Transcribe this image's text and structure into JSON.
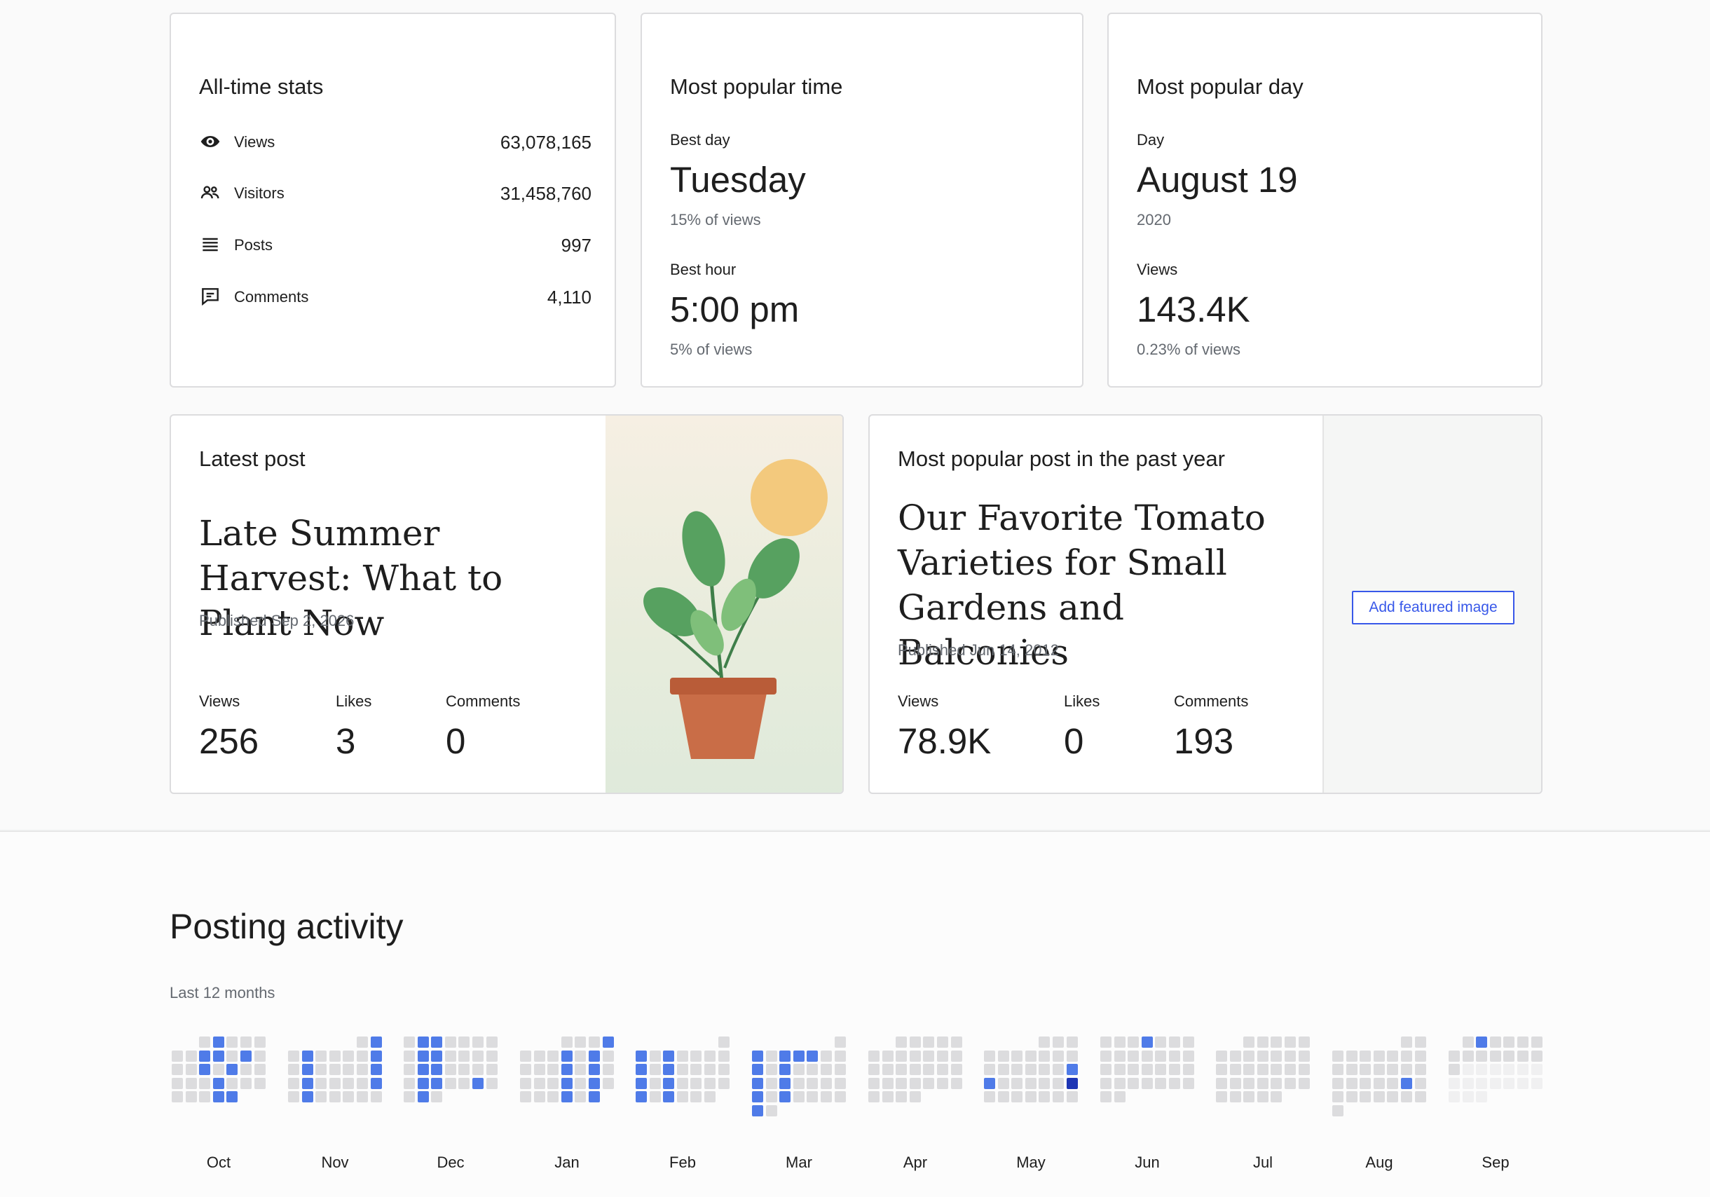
{
  "alltime": {
    "title": "All-time stats",
    "rows": [
      {
        "icon": "eye-icon",
        "label": "Views",
        "value": "63,078,165"
      },
      {
        "icon": "people-icon",
        "label": "Visitors",
        "value": "31,458,760"
      },
      {
        "icon": "posts-icon",
        "label": "Posts",
        "value": "997"
      },
      {
        "icon": "comment-icon",
        "label": "Comments",
        "value": "4,110"
      }
    ]
  },
  "popular_time": {
    "title": "Most popular time",
    "best_day_label": "Best day",
    "best_day": "Tuesday",
    "best_day_pct": "15% of views",
    "best_hour_label": "Best hour",
    "best_hour": "5:00 pm",
    "best_hour_pct": "5% of views"
  },
  "popular_day": {
    "title": "Most popular day",
    "day_label": "Day",
    "day": "August 19",
    "year": "2020",
    "views_label": "Views",
    "views": "143.4K",
    "views_pct": "0.23% of views"
  },
  "latest_post": {
    "title": "Latest post",
    "post_title": "Late Summer Harvest: What to Plant Now",
    "published": "Published Sep 2, 2026",
    "views_label": "Views",
    "views": "256",
    "likes_label": "Likes",
    "likes": "3",
    "comments_label": "Comments",
    "comments": "0"
  },
  "popular_post": {
    "title": "Most popular post in the past year",
    "post_title": "Our Favorite Tomato Varieties for Small Gardens and Balconies",
    "published": "Published Jun 14, 2012",
    "views_label": "Views",
    "views": "78.9K",
    "likes_label": "Likes",
    "likes": "0",
    "comments_label": "Comments",
    "comments": "193",
    "add_image_label": "Add featured image"
  },
  "activity": {
    "title": "Posting activity",
    "subtitle": "Last 12 months",
    "colors": {
      "empty": "#dcdcde",
      "low": "#4f7be8",
      "high": "#1d35b4"
    },
    "months": [
      {
        "label": "Oct",
        "days": 31,
        "start": 2,
        "posts": {
          "2": "low",
          "8": "low",
          "9": "low",
          "11": "low",
          "15": "low",
          "17": "low",
          "23": "low",
          "30": "low",
          "31": "low"
        }
      },
      {
        "label": "Nov",
        "days": 30,
        "start": 5,
        "posts": {
          "2": "low",
          "4": "low",
          "9": "low",
          "11": "low",
          "16": "low",
          "18": "low",
          "23": "low",
          "25": "low"
        }
      },
      {
        "label": "Dec",
        "days": 31,
        "start": 0,
        "posts": {
          "2": "low",
          "3": "low",
          "9": "low",
          "10": "low",
          "16": "low",
          "17": "low",
          "23": "low",
          "24": "low",
          "30": "low",
          "27": "low"
        }
      },
      {
        "label": "Jan",
        "days": 31,
        "start": 3,
        "posts": {
          "4": "low",
          "8": "low",
          "10": "low",
          "15": "low",
          "17": "low",
          "22": "low",
          "24": "low",
          "29": "low",
          "31": "low"
        }
      },
      {
        "label": "Feb",
        "days": 28,
        "start": 6,
        "posts": {
          "2": "low",
          "4": "low",
          "9": "low",
          "11": "low",
          "16": "low",
          "18": "low",
          "23": "low",
          "25": "low"
        }
      },
      {
        "label": "Mar",
        "days": 31,
        "start": 6,
        "posts": {
          "2": "low",
          "4": "low",
          "5": "low",
          "6": "low",
          "9": "low",
          "11": "low",
          "16": "low",
          "18": "low",
          "23": "low",
          "25": "low",
          "30": "low"
        }
      },
      {
        "label": "Apr",
        "days": 30,
        "start": 2,
        "posts": {}
      },
      {
        "label": "May",
        "days": 31,
        "start": 4,
        "posts": {
          "17": "low",
          "18": "low",
          "24": "high"
        }
      },
      {
        "label": "Jun",
        "days": 30,
        "start": 0,
        "posts": {
          "4": "low"
        }
      },
      {
        "label": "Jul",
        "days": 31,
        "start": 2,
        "posts": {}
      },
      {
        "label": "Aug",
        "days": 31,
        "start": 5,
        "posts": {
          "22": "low"
        }
      },
      {
        "label": "Sep",
        "days": 14,
        "start": 1,
        "posts": {
          "2": "low"
        },
        "future_until": 30
      }
    ]
  }
}
